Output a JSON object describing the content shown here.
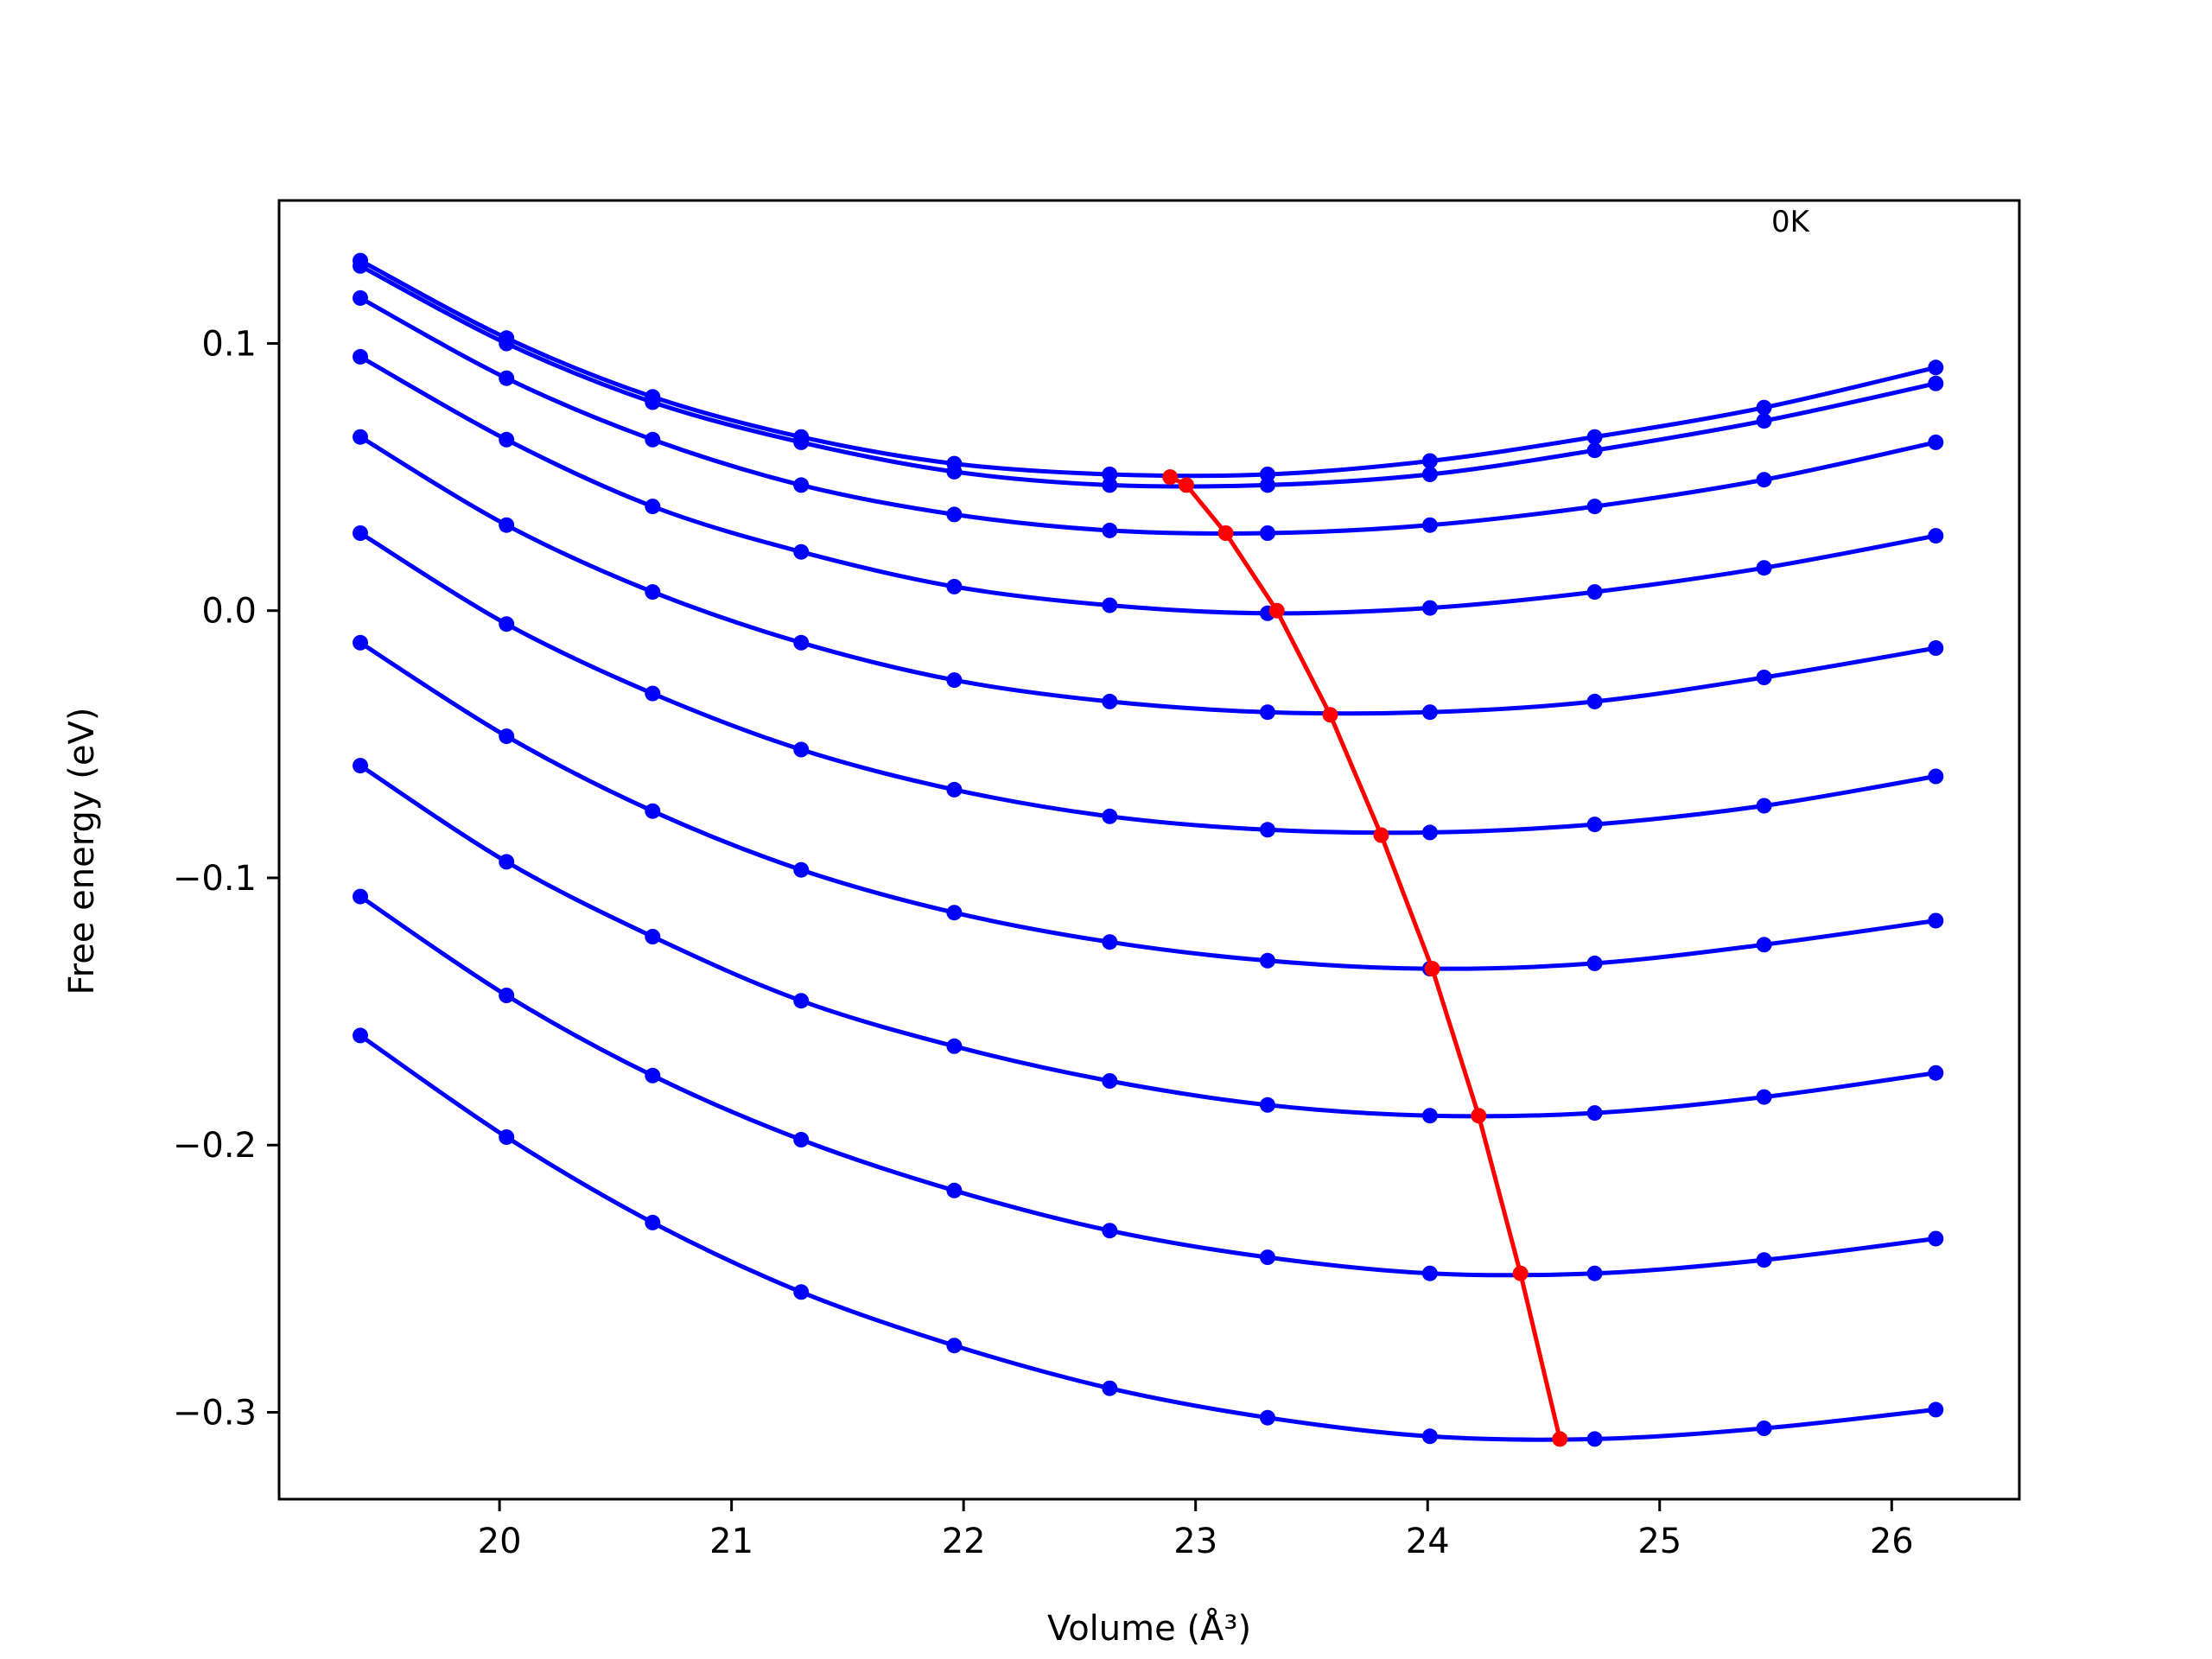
{
  "chart_data": {
    "type": "line",
    "title": "",
    "annotation": "0K",
    "xlabel": "Volume (Å³)",
    "ylabel": "Free energy (eV)",
    "xlim": [
      19.05,
      26.55
    ],
    "ylim": [
      -0.3325,
      0.1535
    ],
    "xticks": [
      20,
      21,
      22,
      23,
      24,
      25,
      26
    ],
    "xtick_labels": [
      "20",
      "21",
      "22",
      "23",
      "24",
      "25",
      "26"
    ],
    "yticks": [
      -0.3,
      -0.2,
      -0.1,
      0.0,
      0.1
    ],
    "ytick_labels": [
      "−0.3",
      "−0.2",
      "−0.1",
      "0.0",
      "0.1"
    ],
    "grid": false,
    "colors": {
      "curves": "#0000ff",
      "minima": "#ff0000"
    },
    "x": [
      19.4,
      20.03,
      20.66,
      21.3,
      21.96,
      22.63,
      23.31,
      24.01,
      24.72,
      25.45,
      26.19
    ],
    "series": [
      {
        "values": [
          0.131,
          0.102,
          0.08,
          0.065,
          0.055,
          0.051,
          0.051,
          0.056,
          0.065,
          0.076,
          0.091
        ]
      },
      {
        "values": [
          0.129,
          0.1,
          0.078,
          0.063,
          0.052,
          0.047,
          0.047,
          0.051,
          0.06,
          0.071,
          0.085
        ]
      },
      {
        "values": [
          0.117,
          0.087,
          0.064,
          0.047,
          0.036,
          0.03,
          0.029,
          0.032,
          0.039,
          0.049,
          0.063
        ]
      },
      {
        "values": [
          0.095,
          0.064,
          0.039,
          0.022,
          0.009,
          0.002,
          -0.001,
          0.001,
          0.007,
          0.016,
          0.028
        ]
      },
      {
        "values": [
          0.065,
          0.032,
          0.007,
          -0.012,
          -0.026,
          -0.034,
          -0.038,
          -0.038,
          -0.034,
          -0.025,
          -0.014
        ]
      },
      {
        "values": [
          0.029,
          -0.005,
          -0.031,
          -0.052,
          -0.067,
          -0.077,
          -0.082,
          -0.083,
          -0.08,
          -0.073,
          -0.062
        ]
      },
      {
        "values": [
          -0.012,
          -0.047,
          -0.075,
          -0.097,
          -0.113,
          -0.124,
          -0.131,
          -0.134,
          -0.132,
          -0.125,
          -0.116
        ]
      },
      {
        "values": [
          -0.058,
          -0.094,
          -0.122,
          -0.146,
          -0.163,
          -0.176,
          -0.185,
          -0.189,
          -0.188,
          -0.182,
          -0.173
        ]
      },
      {
        "values": [
          -0.107,
          -0.144,
          -0.174,
          -0.198,
          -0.217,
          -0.232,
          -0.242,
          -0.248,
          -0.248,
          -0.243,
          -0.235
        ]
      },
      {
        "values": [
          -0.159,
          -0.197,
          -0.229,
          -0.255,
          -0.275,
          -0.291,
          -0.302,
          -0.309,
          -0.31,
          -0.306,
          -0.299
        ]
      }
    ],
    "minima": {
      "x": [
        22.89,
        22.96,
        23.13,
        23.35,
        23.58,
        23.8,
        24.02,
        24.22,
        24.4,
        24.57
      ],
      "y": [
        0.05,
        0.047,
        0.029,
        0.0,
        -0.039,
        -0.084,
        -0.134,
        -0.189,
        -0.248,
        -0.31
      ]
    }
  }
}
